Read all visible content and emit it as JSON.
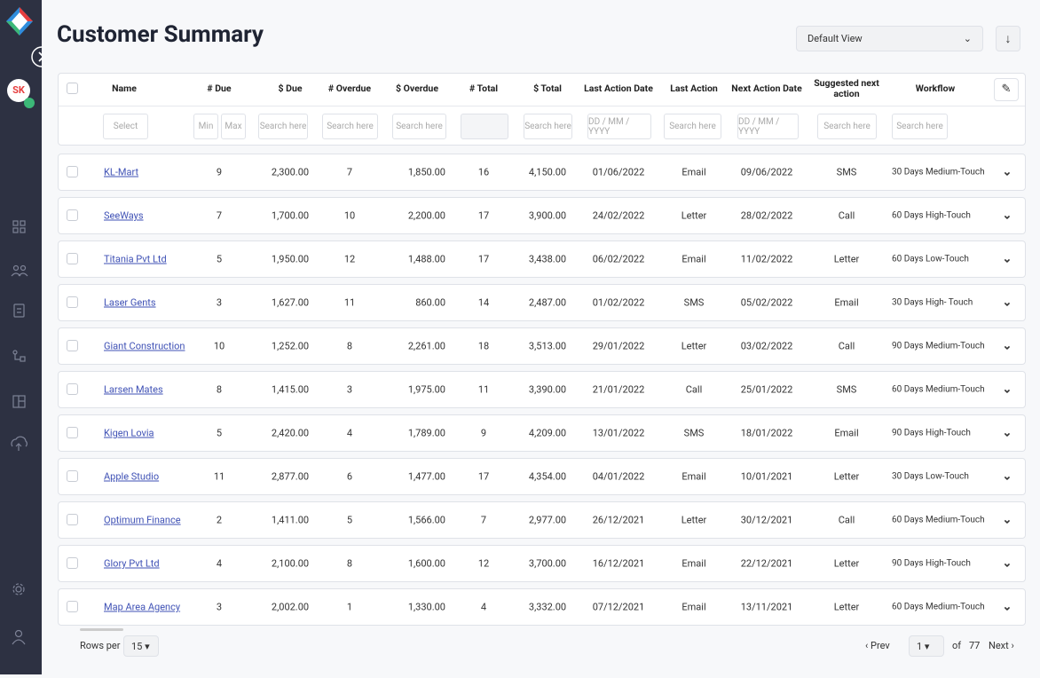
{
  "header": {
    "title": "Customer Summary",
    "view": "Default View"
  },
  "user": {
    "initials": "SK"
  },
  "table": {
    "columns": [
      "Name",
      "# Due",
      "$ Due",
      "# Overdue",
      "$ Overdue",
      "# Total",
      "$ Total",
      "Last Action Date",
      "Last Action",
      "Next Action Date",
      "Suggested next action",
      "Workflow"
    ],
    "filters": [
      "Select",
      [
        "Min",
        "Max"
      ],
      "Search here",
      "Search here",
      "Search here",
      null,
      "Search here",
      "DD / MM / YYYY",
      "Search here",
      "DD / MM / YYYY",
      "Search here",
      "Search here"
    ],
    "rows": [
      [
        "KL-Mart",
        "9",
        "2,300.00",
        "7",
        "1,850.00",
        "16",
        "4,150.00",
        "01/06/2022",
        "Email",
        "09/06/2022",
        "SMS",
        "30 Days Medium-Touch"
      ],
      [
        "SeeWays",
        "7",
        "1,700.00",
        "10",
        "2,200.00",
        "17",
        "3,900.00",
        "24/02/2022",
        "Letter",
        "28/02/2022",
        "Call",
        "60 Days High-Touch"
      ],
      [
        "Titania Pvt Ltd",
        "5",
        "1,950.00",
        "12",
        "1,488.00",
        "17",
        "3,438.00",
        "06/02/2022",
        "Email",
        "11/02/2022",
        "Letter",
        "60 Days Low-Touch"
      ],
      [
        "Laser Gents",
        "3",
        "1,627.00",
        "11",
        "860.00",
        "14",
        "2,487.00",
        "01/02/2022",
        "SMS",
        "05/02/2022",
        "Email",
        "30 Days High- Touch"
      ],
      [
        "Giant Construction",
        "10",
        "1,252.00",
        "8",
        "2,261.00",
        "18",
        "3,513.00",
        "29/01/2022",
        "Letter",
        "03/02/2022",
        "Call",
        "90 Days Medium-Touch"
      ],
      [
        "Larsen Mates",
        "8",
        "1,415.00",
        "3",
        "1,975.00",
        "11",
        "3,390.00",
        "21/01/2022",
        "Call",
        "25/01/2022",
        "SMS",
        "60 Days Medium-Touch"
      ],
      [
        "Kigen Lovia",
        "5",
        "2,420.00",
        "4",
        "1,789.00",
        "9",
        "4,209.00",
        "13/01/2022",
        "SMS",
        "18/01/2022",
        "Email",
        "90 Days High-Touch"
      ],
      [
        "Apple Studio",
        "11",
        "2,877.00",
        "6",
        "1,477.00",
        "17",
        "4,354.00",
        "04/01/2022",
        "Email",
        "10/01/2021",
        "Letter",
        "30 Days Low-Touch"
      ],
      [
        "Optimum Finance",
        "2",
        "1,411.00",
        "5",
        "1,566.00",
        "7",
        "2,977.00",
        "26/12/2021",
        "Letter",
        "30/12/2021",
        "Call",
        "60 Days Medium-Touch"
      ],
      [
        "Glory Pvt Ltd",
        "4",
        "2,100.00",
        "8",
        "1,600.00",
        "12",
        "3,700.00",
        "16/12/2021",
        "Email",
        "22/12/2021",
        "Letter",
        "90 Days High-Touch"
      ],
      [
        "Map Area Agency",
        "3",
        "2,002.00",
        "1",
        "1,330.00",
        "4",
        "3,332.00",
        "07/12/2021",
        "Email",
        "13/11/2021",
        "Letter",
        "60 Days Medium-Touch"
      ]
    ]
  },
  "footer": {
    "rows_per_page_label": "Rows per page:",
    "rows_per_page": "15",
    "prev": "Prev",
    "page": "1",
    "of": "of",
    "total_pages": "77",
    "next": "Next"
  }
}
